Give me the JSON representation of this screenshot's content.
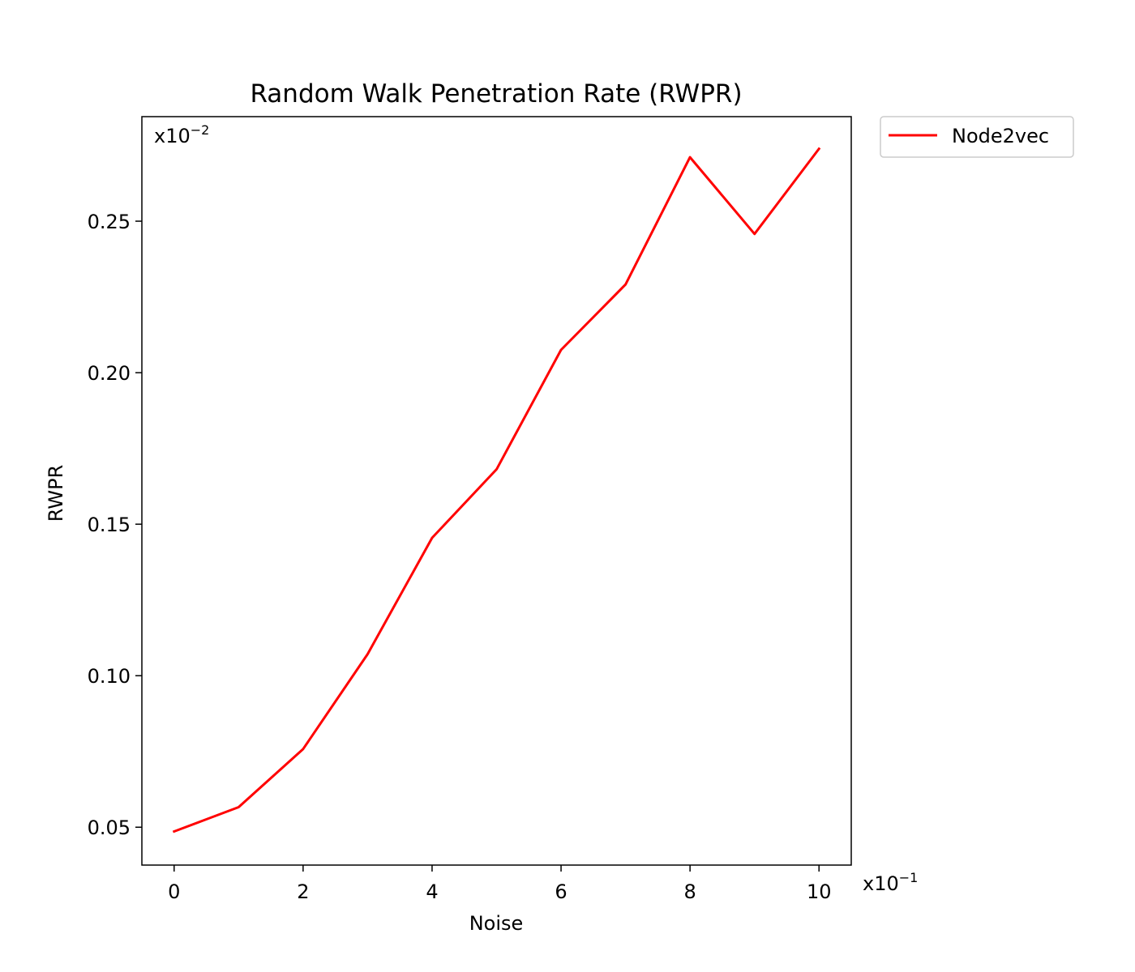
{
  "chart_data": {
    "type": "line",
    "title": "Random Walk Penetration Rate (RWPR)",
    "xlabel": "Noise",
    "ylabel": "RWPR",
    "x_multiplier": "x10−1",
    "y_multiplier": "x10−2",
    "x_multiplier_base": "x10",
    "x_multiplier_exp": "−1",
    "y_multiplier_base": "x10",
    "y_multiplier_exp": "−2",
    "xlim": [
      -0.5,
      10.5
    ],
    "ylim": [
      0.0375,
      0.2845
    ],
    "xticks": [
      0,
      2,
      4,
      6,
      8,
      10
    ],
    "xtick_labels": [
      "0",
      "2",
      "4",
      "6",
      "8",
      "10"
    ],
    "yticks": [
      0.05,
      0.1,
      0.15,
      0.2,
      0.25
    ],
    "ytick_labels": [
      "0.05",
      "0.10",
      "0.15",
      "0.20",
      "0.25"
    ],
    "grid": false,
    "legend_position": "outside-top-right",
    "series": [
      {
        "name": "Node2vec",
        "color": "#ff0000",
        "x": [
          0,
          1,
          2,
          3,
          4,
          5,
          6,
          7,
          8,
          9,
          10
        ],
        "y": [
          0.0486,
          0.0566,
          0.0758,
          0.1071,
          0.1455,
          0.1681,
          0.2075,
          0.2291,
          0.2711,
          0.2458,
          0.2739
        ]
      }
    ]
  }
}
